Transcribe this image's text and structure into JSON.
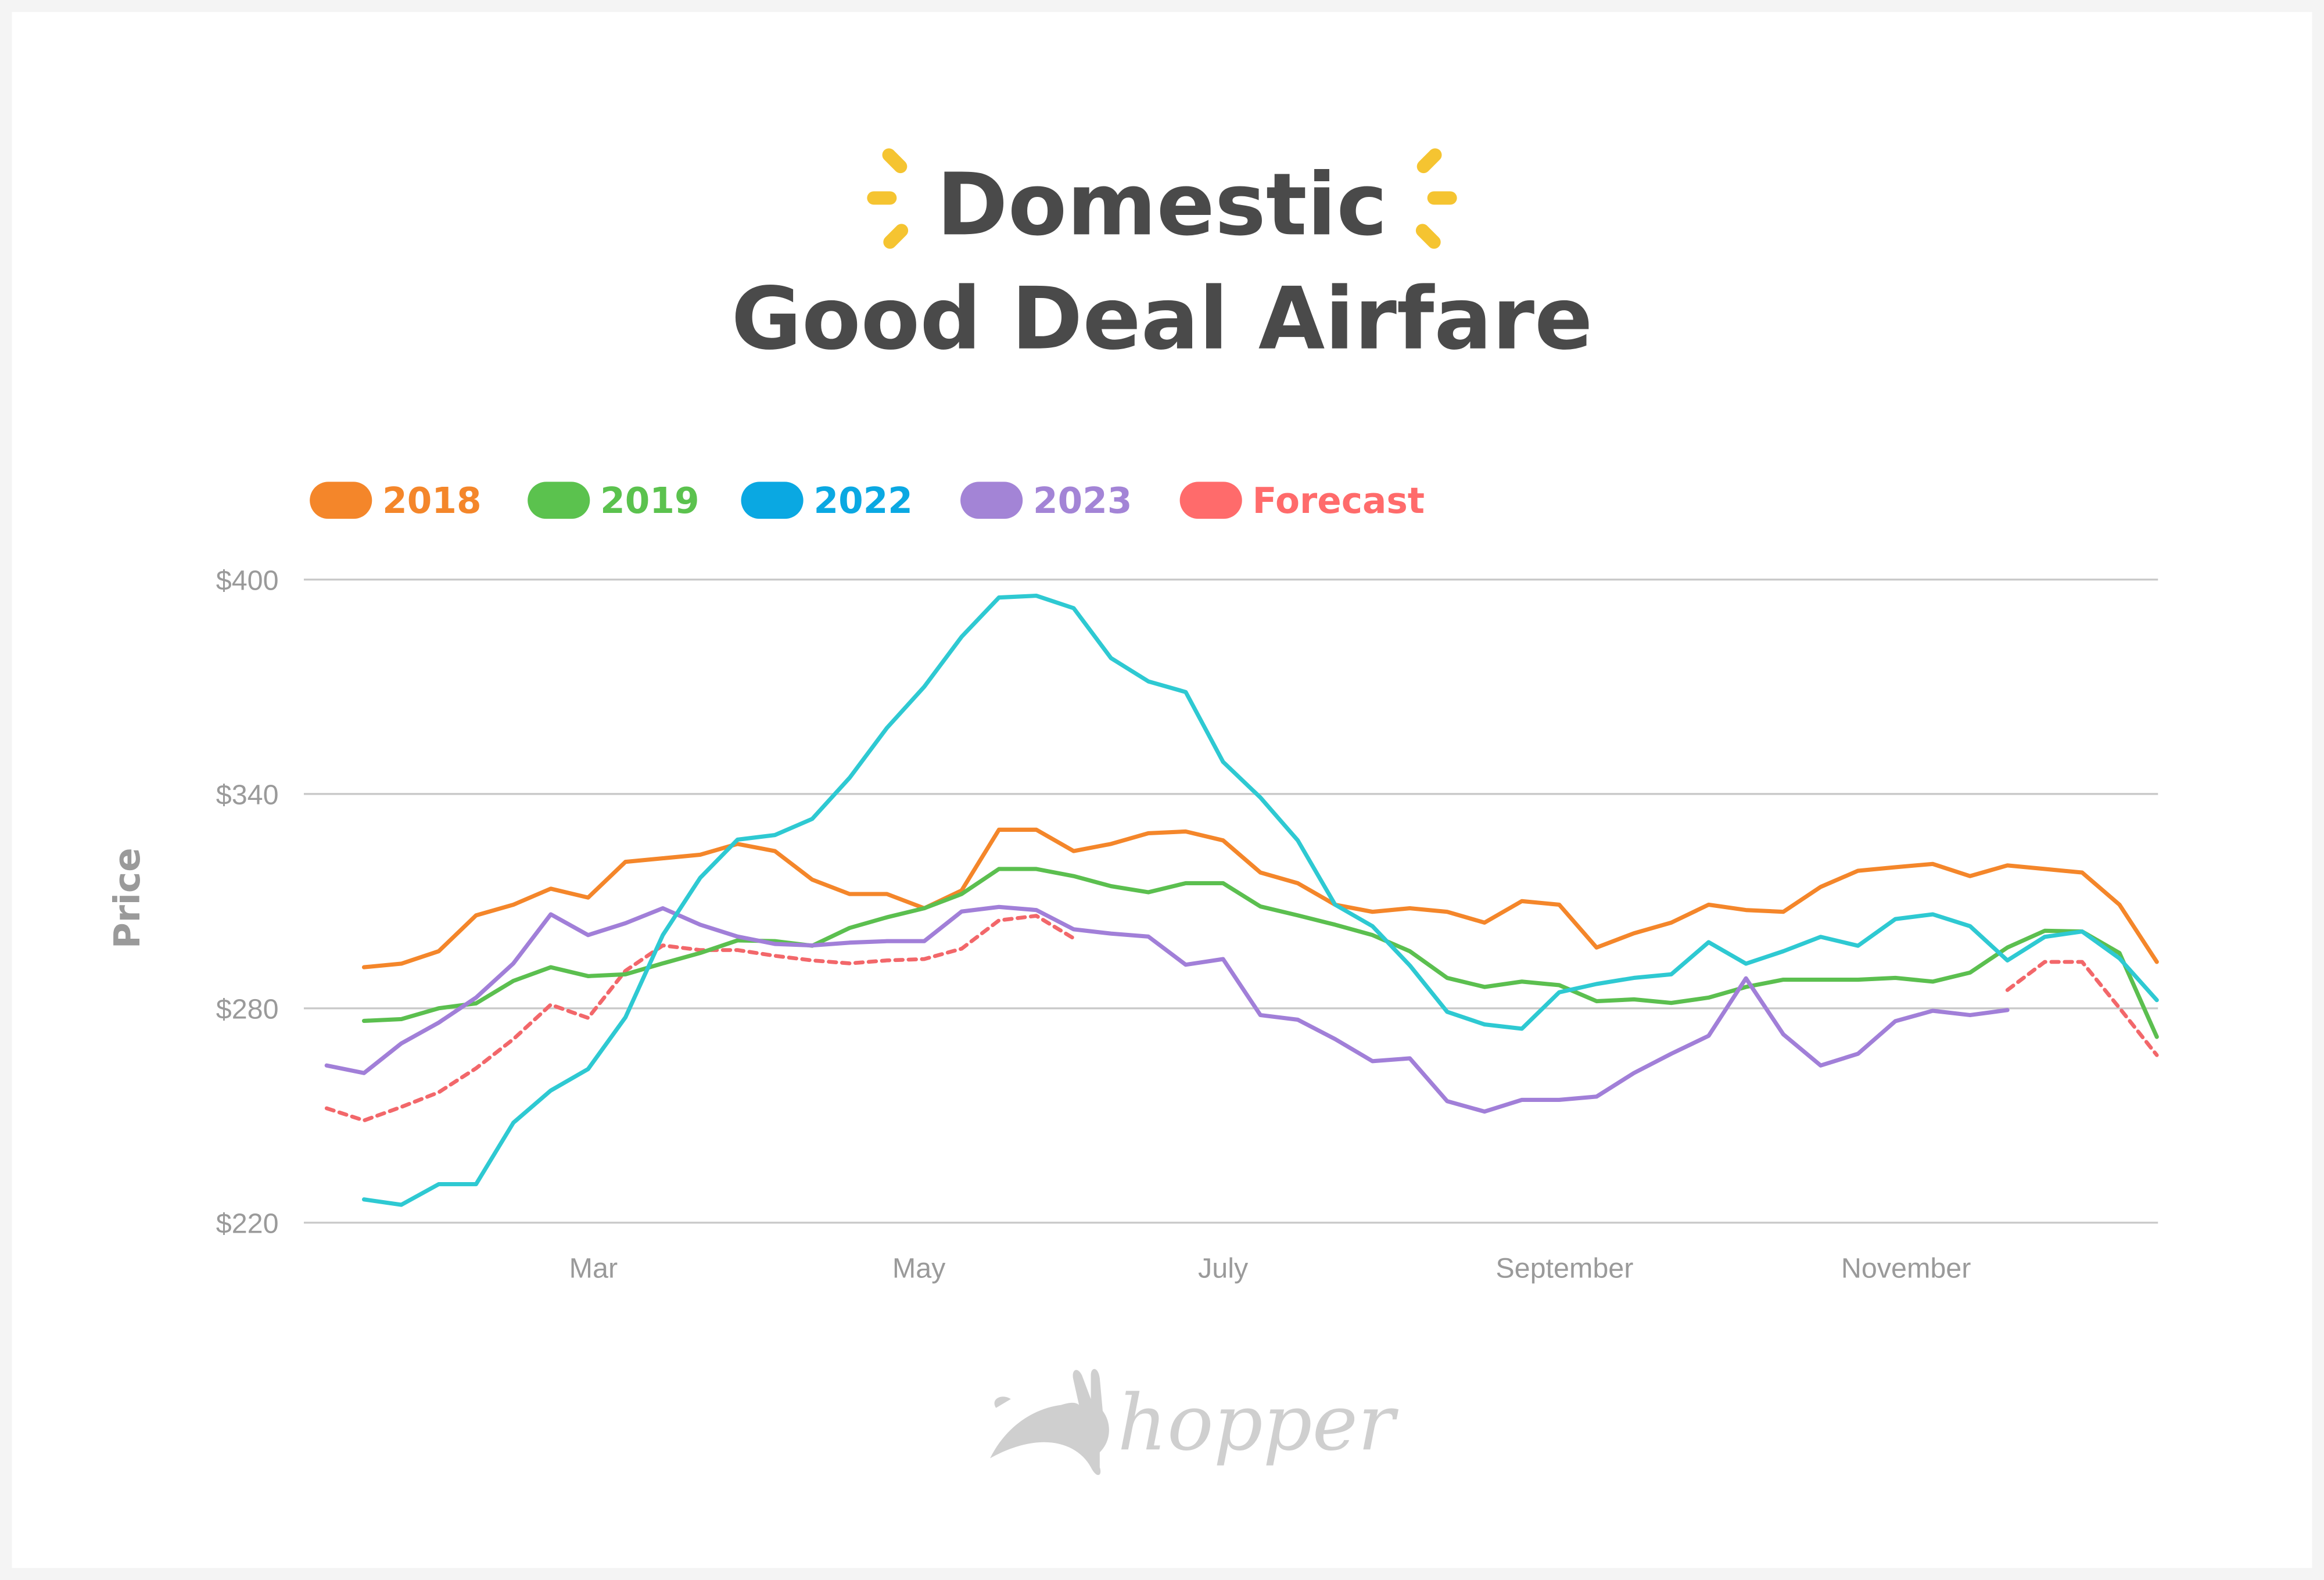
{
  "title": {
    "line1": "Domestic",
    "line2": "Good Deal Airfare",
    "sparkle_color": "#F5C431"
  },
  "logo": {
    "text": "hopper",
    "color": "#cfcfcf"
  },
  "chart_data": {
    "type": "line",
    "title": "Domestic Good Deal Airfare",
    "xlabel": "",
    "ylabel": "Price",
    "ylim": [
      220,
      400
    ],
    "yticks": [
      {
        "value": 400,
        "label": "$400"
      },
      {
        "value": 340,
        "label": "$340"
      },
      {
        "value": 280,
        "label": "$280"
      },
      {
        "value": 220,
        "label": "$220"
      }
    ],
    "xticks": [
      {
        "date": "Mar 1",
        "label": "Mar"
      },
      {
        "date": "May 1",
        "label": "May"
      },
      {
        "date": "Jun 27",
        "label": "July"
      },
      {
        "date": "Aug 30",
        "label": "September"
      },
      {
        "date": "Nov 2",
        "label": "November"
      }
    ],
    "grid": "horizontal",
    "legend_position": "top-left",
    "x": [
      "Jan 10",
      "Jan 17",
      "Jan 24",
      "Jan 31",
      "Feb 7",
      "Feb 14",
      "Feb 21",
      "Feb 28",
      "Mar 7",
      "Mar 14",
      "Mar 21",
      "Mar 28",
      "Apr 4",
      "Apr 11",
      "Apr 18",
      "Apr 25",
      "May 2",
      "May 9",
      "May 16",
      "May 23",
      "May 30",
      "Jun 6",
      "Jun 13",
      "Jun 20",
      "Jun 27",
      "Jul 4",
      "Jul 11",
      "Jul 18",
      "Jul 25",
      "Aug 1",
      "Aug 8",
      "Aug 15",
      "Aug 22",
      "Aug 29",
      "Sep 5",
      "Sep 12",
      "Sep 19",
      "Sep 26",
      "Oct 3",
      "Oct 10",
      "Oct 17",
      "Oct 24",
      "Oct 31",
      "Nov 7",
      "Nov 14",
      "Nov 21",
      "Nov 28",
      "Dec 5",
      "Dec 12",
      "Dec 19"
    ],
    "series": [
      {
        "name": "Forecast",
        "color": "#F2676A",
        "dashed": true,
        "values": [
          252,
          248.6,
          252.4,
          256.5,
          263.2,
          271.4,
          281,
          277.3,
          290.5,
          297.6,
          296.3,
          296.3,
          294.7,
          293.4,
          292.6,
          293.4,
          293.8,
          296.7,
          304.6,
          305.9,
          299.6,
          null,
          null,
          null,
          null,
          null,
          null,
          null,
          null,
          null,
          null,
          null,
          null,
          null,
          null,
          null,
          null,
          null,
          null,
          null,
          null,
          null,
          null,
          null,
          null,
          285.1,
          293,
          293,
          280.1,
          266.9
        ]
      },
      {
        "name": "2018",
        "color": "#F4862A",
        "values": [
          null,
          291.5,
          292.5,
          296,
          306,
          309,
          313.5,
          311,
          321,
          322,
          323,
          326,
          324,
          316,
          312,
          312,
          308,
          313,
          330,
          330,
          324,
          326,
          329,
          329.5,
          327,
          318,
          315,
          309,
          307,
          308,
          307,
          304,
          310,
          309,
          297,
          301,
          304,
          309,
          307.5,
          307,
          314,
          318.5,
          319.5,
          320.4,
          317,
          320,
          319,
          318,
          309,
          293
        ]
      },
      {
        "name": "2019",
        "color": "#5BBF4F",
        "values": [
          null,
          276.5,
          277,
          280,
          281.4,
          287.7,
          291.5,
          289,
          289.5,
          292.6,
          295.5,
          299,
          298.8,
          297.5,
          302.5,
          305.5,
          308,
          312,
          319,
          319,
          317,
          314.2,
          312.5,
          315,
          315,
          308.5,
          306,
          303.4,
          300.5,
          296,
          288.5,
          286,
          287.5,
          286.5,
          282,
          282.5,
          281.5,
          283,
          286,
          288,
          288,
          288,
          288.5,
          287.5,
          290,
          297,
          301.7,
          301.5,
          295.5,
          272
        ]
      },
      {
        "name": "2023",
        "color": "#A17FD8",
        "values": [
          264,
          261.9,
          270.2,
          276,
          283,
          292.6,
          306.3,
          300.5,
          303.8,
          308,
          303.4,
          300.1,
          298,
          297.6,
          298.4,
          298.8,
          298.8,
          307.1,
          308.4,
          307.5,
          302.1,
          300.9,
          300.1,
          292.2,
          293.8,
          278.1,
          276.8,
          271.4,
          265.2,
          266,
          254,
          251.1,
          254.4,
          254.4,
          255.3,
          261.9,
          267.3,
          272.3,
          288.4,
          272.7,
          264,
          267.3,
          276.4,
          279.3,
          278.1,
          279.5,
          null,
          null,
          null,
          null
        ]
      },
      {
        "name": "2022",
        "color": "#2EC9D2",
        "legend_color": "#0AA8E2",
        "values": [
          null,
          226.5,
          225,
          230.8,
          230.8,
          248,
          257,
          263,
          277.5,
          300.5,
          316.5,
          327.2,
          328.5,
          333,
          344.5,
          358.5,
          370,
          384,
          395,
          395.5,
          392,
          378,
          371.5,
          368.5,
          349,
          339,
          327,
          309,
          303,
          292,
          279,
          275.5,
          274.3,
          284.5,
          286.8,
          288.5,
          289.5,
          298.5,
          292.5,
          296,
          300,
          297.5,
          305,
          306.3,
          303,
          293.4,
          300,
          301.5,
          294,
          282.3
        ]
      }
    ],
    "legend": [
      {
        "label": "2018",
        "color": "#F4862A"
      },
      {
        "label": "2019",
        "color": "#5BC24E"
      },
      {
        "label": "2022",
        "color": "#0AA8E2"
      },
      {
        "label": "2023",
        "color": "#A384D6"
      },
      {
        "label": "Forecast",
        "color": "#FF6B6B"
      }
    ]
  }
}
